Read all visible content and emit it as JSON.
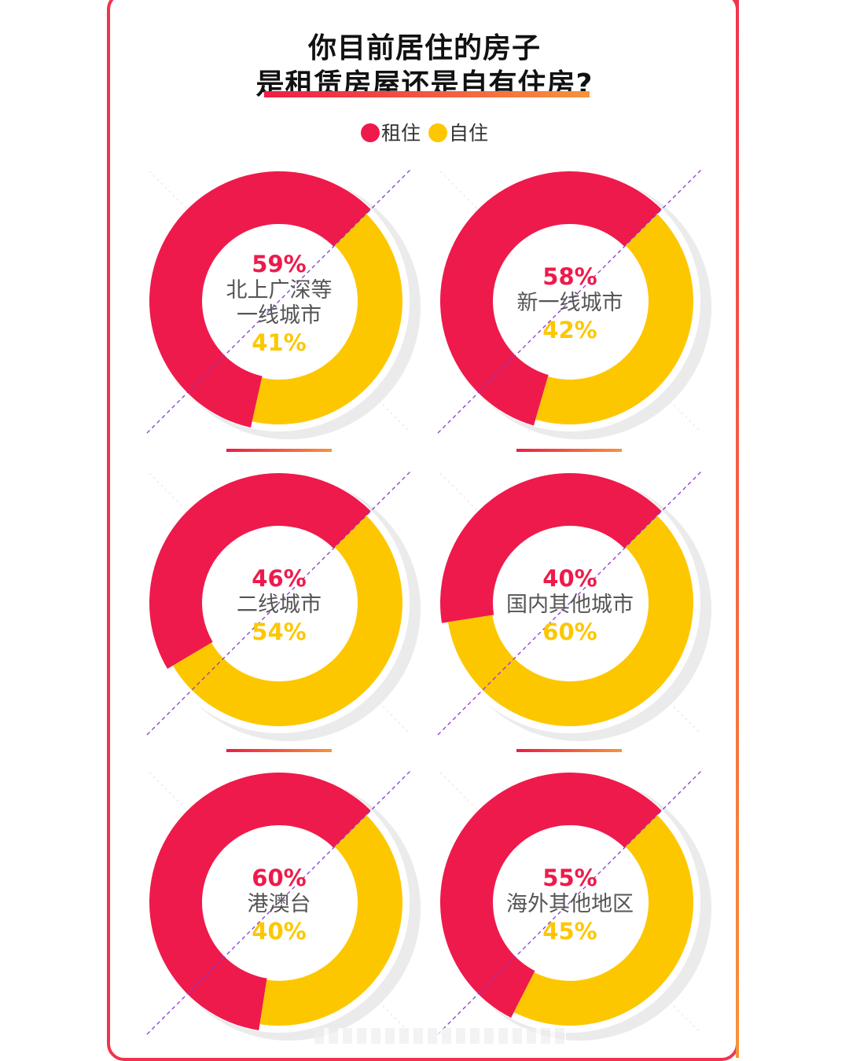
{
  "title": {
    "line1": "你目前居住的房子",
    "line2": "是租赁房屋还是自有住房?"
  },
  "legend": {
    "rent_label": "租住",
    "own_label": "自住"
  },
  "colors": {
    "rent": "#ee1a4b",
    "own": "#fdc700",
    "shadow": "#ebebeb",
    "accent_start": "#ee1c47",
    "accent_end": "#f7933a",
    "dash": "#8a3bd0"
  },
  "chart_data": {
    "type": "donut",
    "categories": [
      "北上广深等一线城市",
      "新一线城市",
      "二线城市",
      "国内其他城市",
      "港澳台",
      "海外其他地区"
    ],
    "series": [
      {
        "name": "租住",
        "values": [
          59,
          58,
          46,
          40,
          60,
          55
        ]
      },
      {
        "name": "自住",
        "values": [
          41,
          42,
          54,
          60,
          40,
          45
        ]
      }
    ],
    "labels": {
      "rent": [
        "59%",
        "58%",
        "46%",
        "40%",
        "60%",
        "55%"
      ],
      "own": [
        "41%",
        "42%",
        "54%",
        "60%",
        "40%",
        "45%"
      ],
      "category_lines": [
        [
          "北上广深等",
          "一线城市"
        ],
        [
          "新一线城市"
        ],
        [
          "二线城市"
        ],
        [
          "国内其他城市"
        ],
        [
          "港澳台"
        ],
        [
          "海外其他地区"
        ]
      ]
    },
    "legend": "top-center"
  }
}
